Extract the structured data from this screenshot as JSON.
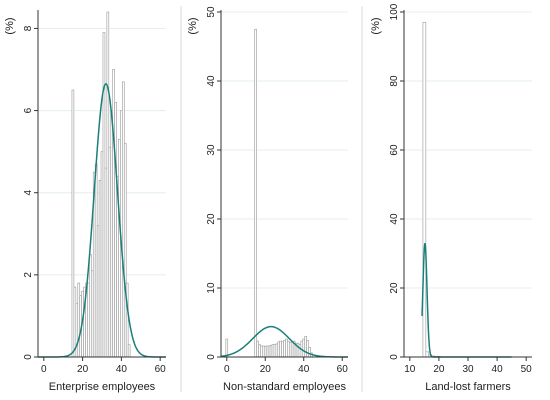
{
  "chart_data": [
    {
      "type": "bar",
      "xlabel": "Enterprise employees",
      "ylabel": "(%)",
      "xlim": [
        -3,
        63
      ],
      "ylim": [
        0,
        8.4
      ],
      "xticks": [
        0,
        20,
        40,
        60
      ],
      "yticks": [
        0,
        2,
        4,
        6,
        8
      ],
      "grid": true,
      "bin_width": 1,
      "bins": [
        {
          "x": 15,
          "y": 6.5
        },
        {
          "x": 16,
          "y": 1.7
        },
        {
          "x": 17,
          "y": 1.3
        },
        {
          "x": 18,
          "y": 1.8
        },
        {
          "x": 19,
          "y": 1.5
        },
        {
          "x": 20,
          "y": 1.6
        },
        {
          "x": 21,
          "y": 1.7
        },
        {
          "x": 22,
          "y": 1.8
        },
        {
          "x": 23,
          "y": 1.8
        },
        {
          "x": 24,
          "y": 2.5
        },
        {
          "x": 25,
          "y": 2.1
        },
        {
          "x": 26,
          "y": 4.5
        },
        {
          "x": 27,
          "y": 4.7
        },
        {
          "x": 28,
          "y": 3.2
        },
        {
          "x": 29,
          "y": 4.3
        },
        {
          "x": 30,
          "y": 5.0
        },
        {
          "x": 31,
          "y": 7.9
        },
        {
          "x": 32,
          "y": 4.6
        },
        {
          "x": 33,
          "y": 8.4
        },
        {
          "x": 34,
          "y": 5.1
        },
        {
          "x": 35,
          "y": 6.0
        },
        {
          "x": 36,
          "y": 7.0
        },
        {
          "x": 37,
          "y": 6.2
        },
        {
          "x": 38,
          "y": 4.4
        },
        {
          "x": 39,
          "y": 5.3
        },
        {
          "x": 40,
          "y": 6.0
        },
        {
          "x": 41,
          "y": 6.7
        },
        {
          "x": 42,
          "y": 5.2
        },
        {
          "x": 43,
          "y": 1.8
        },
        {
          "x": 44,
          "y": 0.3
        }
      ],
      "density": {
        "mean": 32,
        "sd": 6.0,
        "peak": 6.65
      }
    },
    {
      "type": "bar",
      "xlabel": "Non-standard employees",
      "ylabel": "(%)",
      "xlim": [
        -3,
        63
      ],
      "ylim": [
        0,
        50
      ],
      "xticks": [
        0,
        20,
        40,
        60
      ],
      "yticks": [
        0,
        10,
        20,
        30,
        40,
        50
      ],
      "grid": true,
      "bin_width": 1,
      "bins": [
        {
          "x": 0,
          "y": 2.6
        },
        {
          "x": 15,
          "y": 47.5
        },
        {
          "x": 16,
          "y": 2.3
        },
        {
          "x": 17,
          "y": 1.8
        },
        {
          "x": 18,
          "y": 1.6
        },
        {
          "x": 19,
          "y": 1.6
        },
        {
          "x": 20,
          "y": 1.5
        },
        {
          "x": 21,
          "y": 1.6
        },
        {
          "x": 22,
          "y": 1.6
        },
        {
          "x": 23,
          "y": 1.7
        },
        {
          "x": 24,
          "y": 1.8
        },
        {
          "x": 25,
          "y": 1.8
        },
        {
          "x": 26,
          "y": 1.9
        },
        {
          "x": 27,
          "y": 2.2
        },
        {
          "x": 28,
          "y": 2.3
        },
        {
          "x": 29,
          "y": 2.2
        },
        {
          "x": 30,
          "y": 2.4
        },
        {
          "x": 31,
          "y": 2.6
        },
        {
          "x": 32,
          "y": 2.3
        },
        {
          "x": 33,
          "y": 2.1
        },
        {
          "x": 34,
          "y": 2.2
        },
        {
          "x": 35,
          "y": 2.3
        },
        {
          "x": 36,
          "y": 2.0
        },
        {
          "x": 37,
          "y": 2.0
        },
        {
          "x": 38,
          "y": 1.8
        },
        {
          "x": 39,
          "y": 2.3
        },
        {
          "x": 40,
          "y": 2.6
        },
        {
          "x": 41,
          "y": 3.0
        },
        {
          "x": 42,
          "y": 2.4
        },
        {
          "x": 43,
          "y": 1.4
        },
        {
          "x": 44,
          "y": 0.6
        }
      ],
      "density": {
        "mean": 23,
        "sd": 9.5,
        "peak": 4.4
      }
    },
    {
      "type": "bar",
      "xlabel": "Land-lost farmers",
      "ylabel": "(%)",
      "xlim": [
        8,
        52
      ],
      "ylim": [
        0,
        100
      ],
      "xticks": [
        10,
        20,
        30,
        40,
        50
      ],
      "yticks": [
        0,
        20,
        40,
        60,
        80,
        100
      ],
      "grid": true,
      "bin_width": 1,
      "bins": [
        {
          "x": 15,
          "y": 97
        },
        {
          "x": 16,
          "y": 1.5
        },
        {
          "x": 17,
          "y": 0.6
        },
        {
          "x": 18,
          "y": 0.3
        },
        {
          "x": 19,
          "y": 0.2
        },
        {
          "x": 20,
          "y": 0.2
        }
      ],
      "density": {
        "mean": 15.2,
        "sd": 0.7,
        "peak": 33,
        "x_from": 14.2,
        "x_to": 45
      }
    }
  ]
}
